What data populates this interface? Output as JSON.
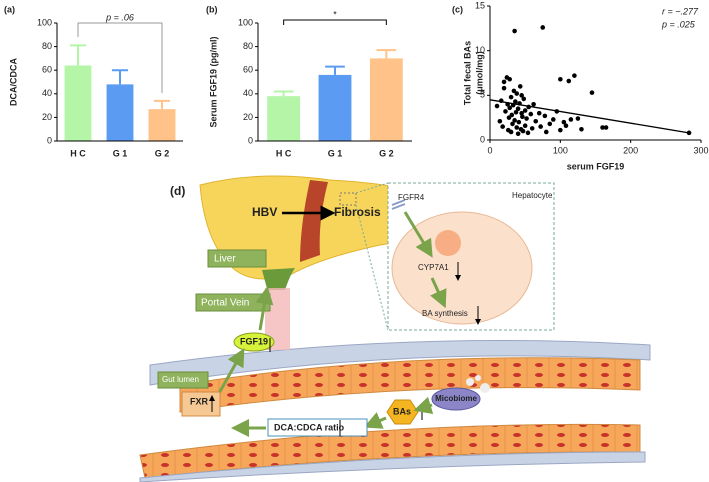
{
  "chart_data": [
    {
      "type": "bar",
      "panel_label": "(a)",
      "ylabel": "DCA/CDCA",
      "categories": [
        "H C",
        "G 1",
        "G 2"
      ],
      "values": [
        64,
        48,
        27
      ],
      "errors": [
        17,
        12,
        7
      ],
      "colors": [
        "#b5f5a8",
        "#5b9cf2",
        "#ffc38a"
      ],
      "ylim": [
        0,
        100
      ],
      "yticks": [
        0,
        20,
        40,
        60,
        80,
        100
      ],
      "annotation": "p = .06"
    },
    {
      "type": "bar",
      "panel_label": "(b)",
      "ylabel": "Serum FGF19 (pg/ml)",
      "categories": [
        "H C",
        "G 1",
        "G 2"
      ],
      "values": [
        38,
        56,
        70
      ],
      "errors": [
        4,
        7,
        7
      ],
      "colors": [
        "#b5f5a8",
        "#5b9cf2",
        "#ffc38a"
      ],
      "ylim": [
        0,
        100
      ],
      "yticks": [
        0,
        20,
        40,
        60,
        80,
        100
      ],
      "annotation": "*"
    },
    {
      "type": "scatter",
      "panel_label": "(c)",
      "ylabel": "Total fecal BAs",
      "ylabel2": "(μmol/mg)",
      "xlabel": "serum FGF19",
      "annotations": [
        "r = −.277",
        "p = .025"
      ],
      "color": "#000000",
      "x": [
        10,
        14,
        16,
        18,
        20,
        20,
        22,
        24,
        25,
        26,
        27,
        28,
        28,
        30,
        30,
        31,
        32,
        33,
        34,
        35,
        35,
        36,
        37,
        38,
        38,
        40,
        40,
        41,
        42,
        43,
        44,
        45,
        45,
        46,
        47,
        48,
        50,
        50,
        52,
        54,
        55,
        58,
        60,
        62,
        65,
        70,
        72,
        75,
        78,
        80,
        85,
        90,
        95,
        100,
        100,
        105,
        108,
        112,
        115,
        120,
        125,
        130,
        145,
        160,
        165,
        283
      ],
      "y": [
        3.8,
        2.1,
        4.4,
        1.5,
        5.8,
        6.5,
        3.2,
        7.0,
        4.0,
        1.1,
        2.5,
        6.8,
        3.6,
        0.9,
        4.8,
        2.8,
        1.8,
        3.9,
        5.5,
        12.2,
        2.2,
        4.3,
        3.1,
        1.4,
        5.2,
        0.7,
        3.5,
        2.0,
        4.1,
        6.0,
        1.2,
        3.0,
        5.0,
        2.6,
        1.0,
        4.6,
        3.3,
        1.6,
        2.4,
        0.8,
        3.7,
        2.9,
        1.3,
        4.0,
        2.1,
        3.0,
        1.5,
        12.6,
        2.7,
        0.9,
        1.8,
        2.3,
        3.2,
        6.8,
        1.1,
        2.0,
        1.6,
        6.6,
        2.3,
        7.2,
        2.4,
        1.2,
        5.3,
        1.4,
        1.4,
        0.8
      ],
      "fit_line": {
        "x": [
          0,
          283
        ],
        "y": [
          4.5,
          0.8
        ]
      },
      "xlim": [
        0,
        300
      ],
      "xticks": [
        0,
        100,
        200,
        300
      ],
      "ylim": [
        0,
        15
      ],
      "yticks": [
        0,
        5,
        10,
        15
      ]
    }
  ],
  "diagram": {
    "panel_label": "(d)",
    "hbv": "HBV",
    "fibrosis": "Fibrosis",
    "liver": "Liver",
    "portal_vein": "Portal Vein",
    "fgf19": "FGF19",
    "gut_lumen": "Gut lumen",
    "fxr": "FXR",
    "bas": "BAs",
    "microbiome": "Micobiome",
    "ratio": "DCA:CDCA ratio",
    "hepatocyte": "Hepatocyte",
    "fgfr4": "FGFR4",
    "cyp7a1": "CYP7A1",
    "ba_synthesis": "BA synthesis"
  }
}
